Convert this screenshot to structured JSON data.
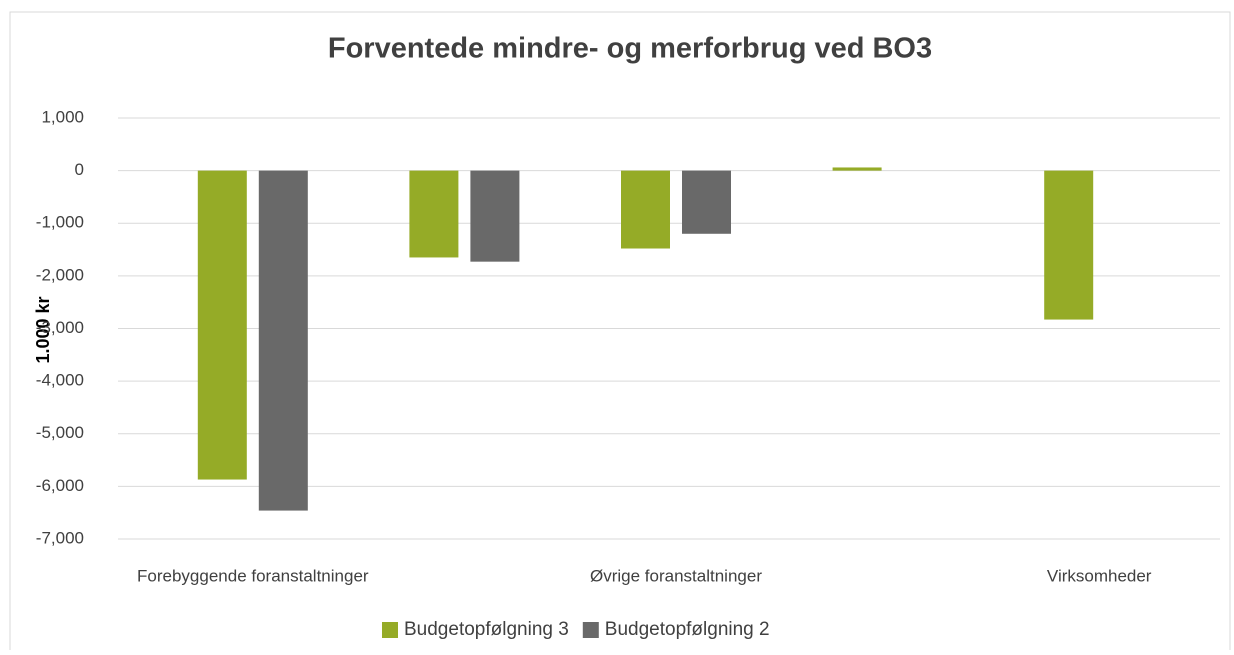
{
  "chart_data": {
    "type": "bar",
    "title": "Forventede mindre- og merforbrug ved BO3",
    "y_label": "1.000 kr",
    "categories": [
      "Forebyggende foranstaltninger",
      null,
      "Øvrige foranstaltninger",
      null,
      "Virksomheder"
    ],
    "series": [
      {
        "name": "Budgetopfølgning 3",
        "color": "#95ab27",
        "values": [
          -5870,
          -1650,
          -1480,
          60,
          -2830
        ]
      },
      {
        "name": "Budgetopfølgning 2",
        "color": "#696969",
        "values": [
          -6460,
          -1730,
          -1200,
          null,
          null
        ]
      }
    ],
    "ylim": [
      -7000,
      1000
    ],
    "yticks": [
      {
        "value": -7000,
        "label": "-7,000"
      },
      {
        "value": -6000,
        "label": "-6,000"
      },
      {
        "value": -5000,
        "label": "-5,000"
      },
      {
        "value": -4000,
        "label": "-4,000"
      },
      {
        "value": -3000,
        "label": "-3,000"
      },
      {
        "value": -2000,
        "label": "-2,000"
      },
      {
        "value": -1000,
        "label": "-1,000"
      },
      0,
      {
        "value": 1000,
        "label": "1,000"
      }
    ],
    "grid": true,
    "legend": "bottom"
  }
}
